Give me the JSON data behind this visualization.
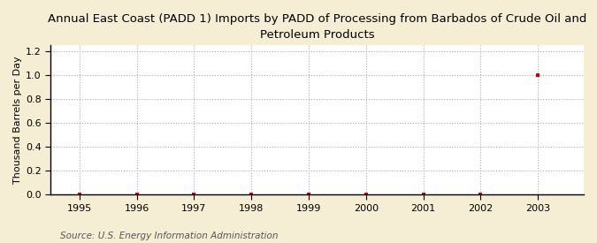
{
  "title": "Annual East Coast (PADD 1) Imports by PADD of Processing from Barbados of Crude Oil and\nPetroleum Products",
  "ylabel": "Thousand Barrels per Day",
  "source": "Source: U.S. Energy Information Administration",
  "fig_background_color": "#F5EDD4",
  "plot_background_color": "#FFFFFF",
  "x_data": [
    1995,
    1996,
    1997,
    1998,
    1999,
    2000,
    2001,
    2002,
    2003
  ],
  "y_data": [
    0.0,
    0.0,
    0.0,
    0.0,
    0.0,
    0.0,
    0.0,
    0.0,
    1.0
  ],
  "xlim": [
    1994.5,
    2003.8
  ],
  "ylim": [
    0.0,
    1.25
  ],
  "yticks": [
    0.0,
    0.2,
    0.4,
    0.6,
    0.8,
    1.0,
    1.2
  ],
  "xticks": [
    1995,
    1996,
    1997,
    1998,
    1999,
    2000,
    2001,
    2002,
    2003
  ],
  "marker_color": "#CC0000",
  "marker_size": 3,
  "grid_color": "#AAAAAA",
  "title_fontsize": 9.5,
  "axis_label_fontsize": 8,
  "tick_fontsize": 8,
  "source_fontsize": 7.5
}
